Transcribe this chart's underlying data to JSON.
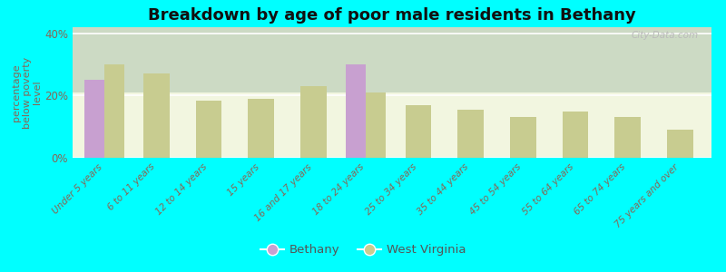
{
  "title": "Breakdown by age of poor male residents in Bethany",
  "ylabel": "percentage\nbelow poverty\nlevel",
  "background_color": "#00ffff",
  "plot_bg_gradient_top": "#e8edd8",
  "plot_bg_gradient_bottom": "#f0f5e0",
  "categories": [
    "Under 5 years",
    "6 to 11 years",
    "12 to 14 years",
    "15 years",
    "16 and 17 years",
    "18 to 24 years",
    "25 to 34 years",
    "35 to 44 years",
    "45 to 54 years",
    "55 to 64 years",
    "65 to 74 years",
    "75 years and over"
  ],
  "bethany_values": [
    25.0,
    0,
    0,
    0,
    0,
    30.0,
    0,
    0,
    0,
    0,
    0,
    0
  ],
  "wv_values": [
    30.0,
    27.0,
    18.5,
    19.0,
    23.0,
    21.0,
    17.0,
    15.5,
    13.0,
    15.0,
    13.0,
    9.0
  ],
  "bethany_color": "#c8a0d0",
  "wv_color": "#c8cc90",
  "ylim": [
    0,
    42
  ],
  "yticks": [
    0,
    20,
    40
  ],
  "ytick_labels": [
    "0%",
    "20%",
    "40%"
  ],
  "bar_width": 0.38,
  "legend_labels": [
    "Bethany",
    "West Virginia"
  ],
  "watermark": "City-Data.com",
  "label_color": "#886655",
  "title_color": "#111111"
}
